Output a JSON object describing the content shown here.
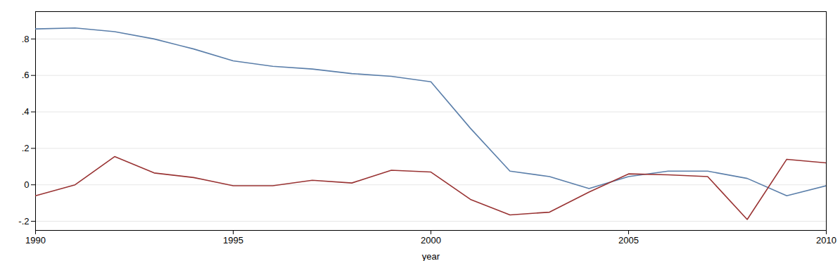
{
  "chart_data": {
    "type": "line",
    "x": [
      1990,
      1991,
      1992,
      1993,
      1994,
      1995,
      1996,
      1997,
      1998,
      1999,
      2000,
      2001,
      2002,
      2003,
      2004,
      2005,
      2006,
      2007,
      2008,
      2009,
      2010
    ],
    "series": [
      {
        "color": "#5b7faa",
        "values": [
          0.855,
          0.86,
          0.84,
          0.8,
          0.745,
          0.68,
          0.65,
          0.635,
          0.61,
          0.595,
          0.565,
          0.31,
          0.075,
          0.045,
          -0.02,
          0.045,
          0.075,
          0.075,
          0.035,
          -0.06,
          -0.005
        ]
      },
      {
        "color": "#993333",
        "values": [
          -0.06,
          0.0,
          0.155,
          0.065,
          0.04,
          -0.005,
          -0.005,
          0.025,
          0.01,
          0.08,
          0.07,
          -0.08,
          -0.165,
          -0.15,
          -0.04,
          0.06,
          0.055,
          0.045,
          -0.19,
          0.14,
          0.12
        ]
      }
    ],
    "xlabel": "year",
    "xlim": [
      1990,
      2010
    ],
    "xticks": [
      1990,
      1995,
      2000,
      2005,
      2010
    ],
    "ylim": [
      -0.25,
      0.95
    ],
    "yticks": [
      {
        "value": -0.2,
        "label": "-.2"
      },
      0,
      {
        "value": 0.2,
        "label": ".2"
      },
      {
        "value": 0.4,
        "label": ".4"
      },
      {
        "value": 0.6,
        "label": ".6"
      },
      {
        "value": 0.8,
        "label": ".8"
      }
    ],
    "grid": true
  }
}
